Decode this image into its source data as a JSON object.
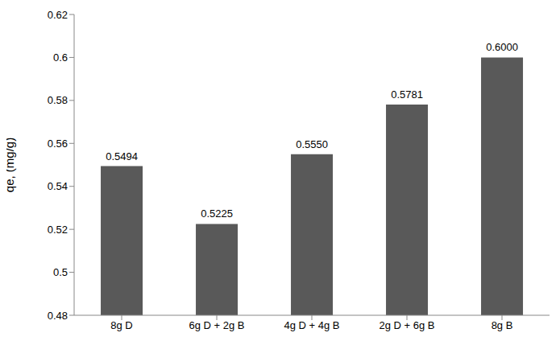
{
  "chart_data": {
    "type": "bar",
    "y_label": "qe, (mg/g)",
    "categories": [
      "8g D",
      "6g D + 2g B",
      "4g D + 4g B",
      "2g D + 6g B",
      "8g B"
    ],
    "values": [
      0.5494,
      0.5225,
      0.555,
      0.5781,
      0.6
    ],
    "value_labels": [
      "0.5494",
      "0.5225",
      "0.5550",
      "0.5781",
      "0.6000"
    ],
    "color": "#595959",
    "ylim": [
      0.48,
      0.62
    ],
    "yticks": [
      0.48,
      0.5,
      0.52,
      0.54,
      0.56,
      0.58,
      0.6,
      0.62
    ],
    "grid": false,
    "data_labels": true
  }
}
